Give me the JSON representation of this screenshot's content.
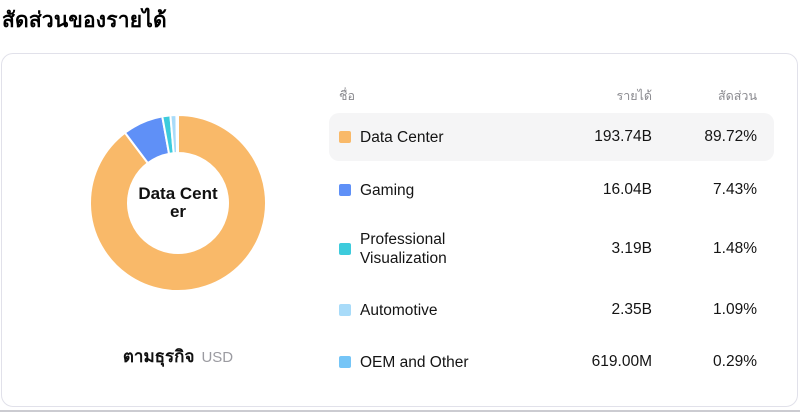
{
  "title": "สัดส่วนของรายได้",
  "table": {
    "headers": {
      "name": "ชื่อ",
      "revenue": "รายได้",
      "share": "สัดส่วน"
    },
    "rows": [
      {
        "name": "Data Center",
        "revenue": "193.74B",
        "share": "89.72%",
        "color": "#F9B969",
        "highlighted": true
      },
      {
        "name": "Gaming",
        "revenue": "16.04B",
        "share": "7.43%",
        "color": "#5F90F7",
        "highlighted": false
      },
      {
        "name": "Professional Visualization",
        "revenue": "3.19B",
        "share": "1.48%",
        "color": "#3DCBDC",
        "highlighted": false
      },
      {
        "name": "Automotive",
        "revenue": "2.35B",
        "share": "1.09%",
        "color": "#A8DBF9",
        "highlighted": false
      },
      {
        "name": "OEM and Other",
        "revenue": "619.00M",
        "share": "0.29%",
        "color": "#75C5F7",
        "highlighted": false
      }
    ]
  },
  "donut": {
    "center_label": "Data Center",
    "center_label_lines": [
      "Data Cent",
      "er"
    ],
    "footer_label": "ตามธุรกิจ",
    "footer_unit": "USD"
  },
  "chart_data": {
    "type": "pie",
    "donut": true,
    "title": "สัดส่วนของรายได้",
    "subtitle": "ตามธุรกิจ",
    "unit": "USD",
    "categories": [
      "Data Center",
      "Gaming",
      "Professional Visualization",
      "Automotive",
      "OEM and Other"
    ],
    "values_percent": [
      89.72,
      7.43,
      1.48,
      1.09,
      0.29
    ],
    "revenues": [
      "193.74B",
      "16.04B",
      "3.19B",
      "2.35B",
      "619.00M"
    ],
    "colors": [
      "#F9B969",
      "#5F90F7",
      "#3DCBDC",
      "#A8DBF9",
      "#75C5F7"
    ],
    "start_angle_deg": -90,
    "direction": "clockwise",
    "inner_radius_ratio": 0.57,
    "slice_border_color": "#FFFFFF",
    "center_label": "Data Center",
    "legend_position": "right-table"
  }
}
